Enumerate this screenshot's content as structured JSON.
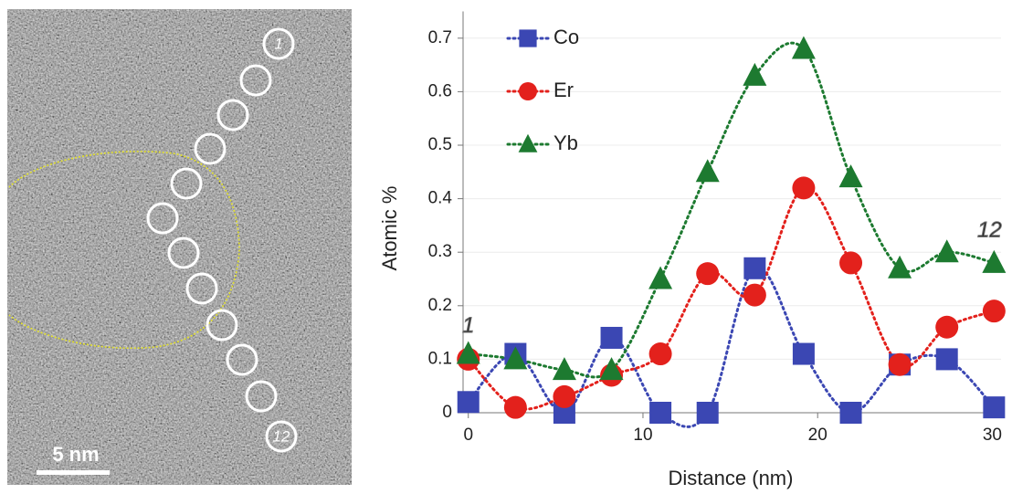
{
  "image": {
    "scale_bar": "5 nm",
    "first_label": "1",
    "last_label": "12"
  },
  "chart_data": {
    "type": "line",
    "x_label": "Distance (nm)",
    "y_label": "Atomic %",
    "x": [
      0,
      2.7,
      5.5,
      8.2,
      11,
      13.7,
      16.4,
      19.2,
      21.9,
      24.7,
      27.4,
      30.1
    ],
    "series": [
      {
        "name": "Co",
        "color": "#3b47b3",
        "marker": "square",
        "values": [
          0.02,
          0.11,
          0,
          0.14,
          0,
          0,
          0.27,
          0.11,
          0,
          0.09,
          0.1,
          0.01
        ]
      },
      {
        "name": "Er",
        "color": "#e3211c",
        "marker": "circle",
        "values": [
          0.1,
          0.01,
          0.03,
          0.07,
          0.11,
          0.26,
          0.22,
          0.42,
          0.28,
          0.09,
          0.16,
          0.19
        ]
      },
      {
        "name": "Yb",
        "color": "#1d7a30",
        "marker": "triangle",
        "values": [
          0.11,
          0.1,
          0.08,
          0.08,
          0.25,
          0.45,
          0.63,
          0.68,
          0.44,
          0.27,
          0.3,
          0.28
        ]
      }
    ],
    "annotations": [
      "1",
      "12"
    ],
    "xlim": [
      -0.3,
      30.5
    ],
    "xticks": [
      0,
      10,
      20,
      30
    ],
    "ylim": [
      0,
      0.75
    ],
    "yticks": [
      0,
      0.1,
      0.2,
      0.3,
      0.4,
      0.5,
      0.6,
      0.7
    ],
    "grid": true,
    "legend": "upper-left"
  }
}
